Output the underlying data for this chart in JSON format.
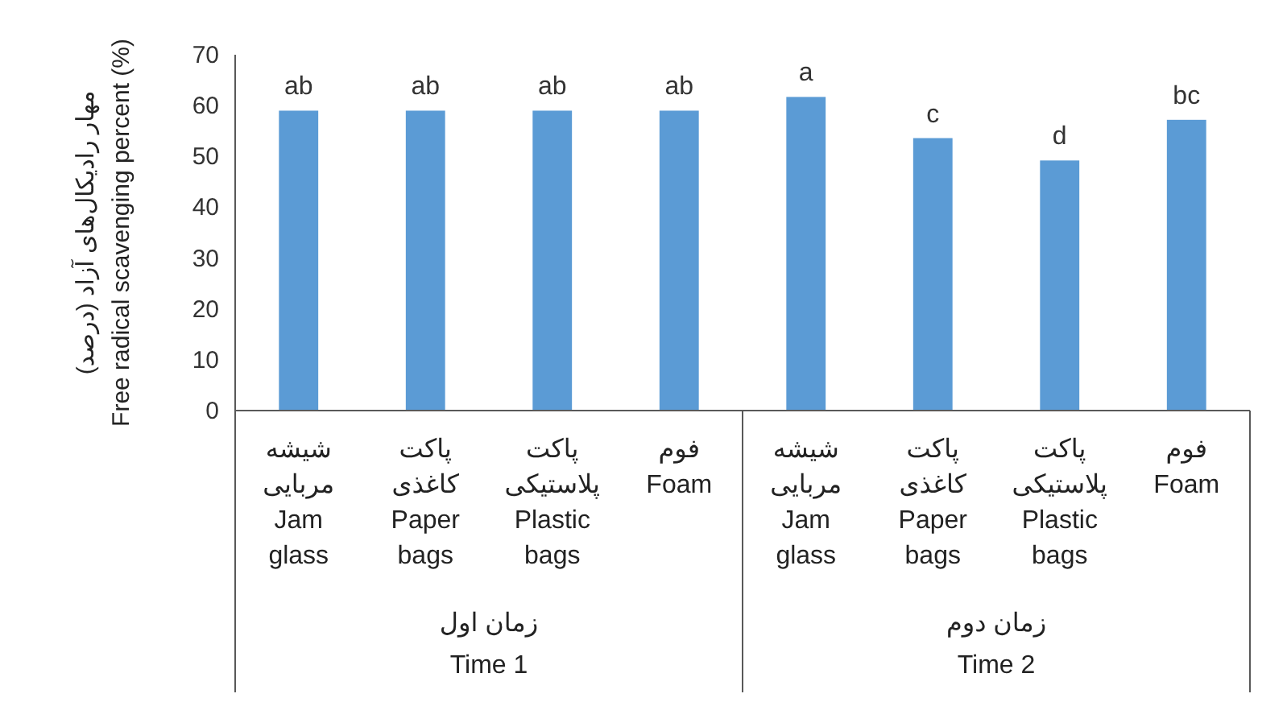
{
  "chart_data": {
    "type": "bar",
    "ylabel": "مهار رادیکال‌های آزاد (درصد)\nFree radical scavenging percent (%)",
    "categories": [
      "شیشه\nمربایی\nJam\nglass",
      "پاکت\nکاغذی\nPaper\nbags",
      "پاکت\nپلاستیکی\nPlastic\nbags",
      "فوم\nFoam",
      "شیشه\nمربایی\nJam\nglass",
      "پاکت\nکاغذی\nPaper\nbags",
      "پاکت\nپلاستیکی\nPlastic\nbags",
      "فوم\nFoam"
    ],
    "values": [
      59,
      59,
      59,
      59,
      61.7,
      53.6,
      49.2,
      57.2
    ],
    "value_labels": [
      "ab",
      "ab",
      "ab",
      "ab",
      "a",
      "c",
      "d",
      "bc"
    ],
    "color": "#5b9bd5",
    "ylim": [
      0,
      70
    ],
    "yticks": [
      0,
      10,
      20,
      30,
      40,
      50,
      60,
      70
    ],
    "grid": false,
    "annotations": [
      "زمان اول\nTime 1",
      "زمان دوم\nTime 2"
    ]
  }
}
